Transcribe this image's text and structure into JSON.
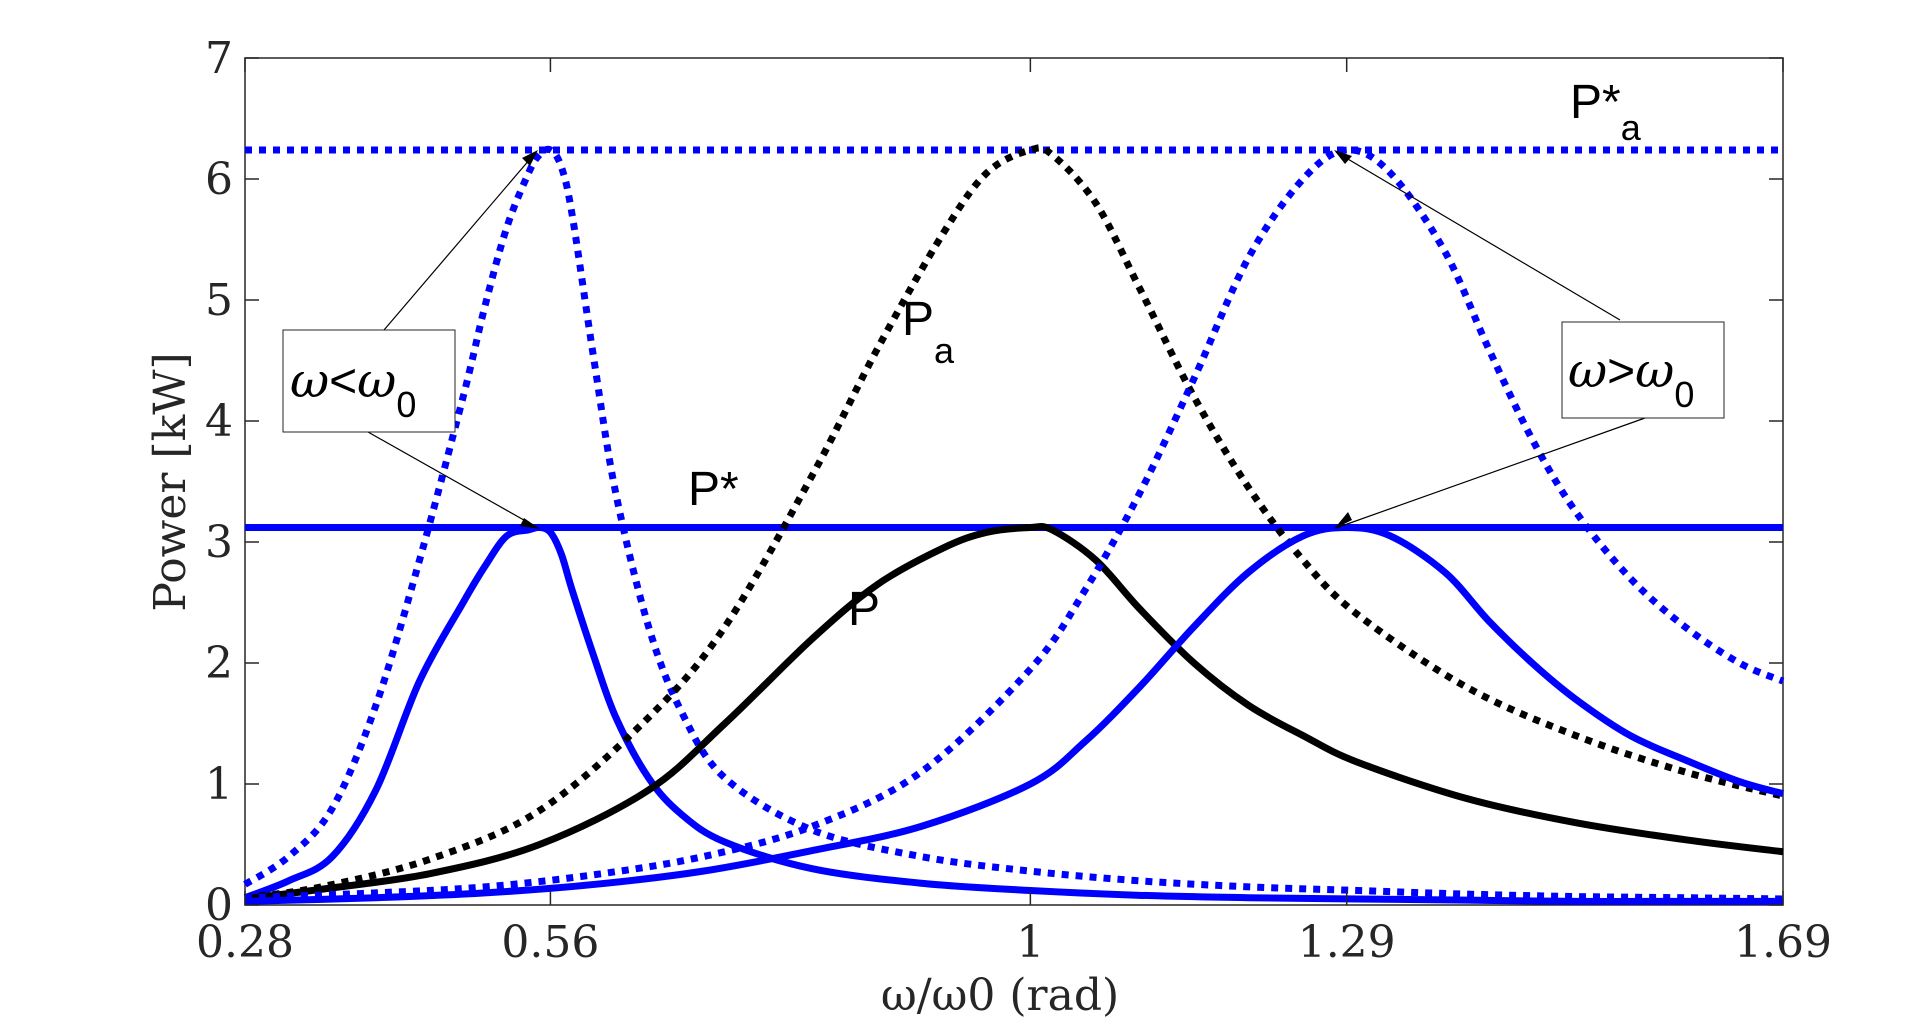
{
  "chart_data": {
    "type": "line",
    "xlabel": "ω/ω0 (rad)",
    "ylabel": "Power [kW]",
    "xlim": [
      0.28,
      1.69
    ],
    "ylim": [
      0,
      7
    ],
    "xticks": [
      0.28,
      0.56,
      1,
      1.29,
      1.69
    ],
    "xtick_labels": [
      "0.28",
      "0.56",
      "1",
      "1.29",
      "1.69"
    ],
    "yticks": [
      0,
      1,
      2,
      3,
      4,
      5,
      6,
      7
    ],
    "ytick_labels": [
      "0",
      "1",
      "2",
      "3",
      "4",
      "5",
      "6",
      "7"
    ],
    "grid": false,
    "colors": {
      "blue": "#0000ff",
      "black": "#000000",
      "axis": "#262626"
    },
    "series": [
      {
        "id": "p-star-a",
        "color": "#0000ff",
        "style": "dotted",
        "x": [
          0.28,
          1.69
        ],
        "y": [
          6.24,
          6.24
        ]
      },
      {
        "id": "p-star",
        "color": "#0000ff",
        "style": "solid",
        "x": [
          0.28,
          1.69
        ],
        "y": [
          3.12,
          3.12
        ]
      },
      {
        "id": "pa-low",
        "color": "#0000ff",
        "style": "dotted",
        "x": [
          0.28,
          0.32,
          0.36,
          0.4,
          0.44,
          0.48,
          0.5,
          0.52,
          0.54,
          0.55,
          0.56,
          0.57,
          0.58,
          0.6,
          0.62,
          0.65,
          0.68,
          0.72,
          0.8,
          0.9,
          1.0,
          1.1,
          1.2,
          1.3,
          1.4,
          1.5,
          1.6,
          1.69
        ],
        "y": [
          0.17,
          0.4,
          0.8,
          1.65,
          2.85,
          4.2,
          4.95,
          5.6,
          6.05,
          6.2,
          6.24,
          6.1,
          5.7,
          4.5,
          3.4,
          2.3,
          1.6,
          1.05,
          0.62,
          0.4,
          0.28,
          0.2,
          0.15,
          0.12,
          0.09,
          0.07,
          0.06,
          0.05
        ]
      },
      {
        "id": "p-low",
        "color": "#0000ff",
        "style": "solid",
        "x": [
          0.28,
          0.32,
          0.36,
          0.4,
          0.44,
          0.48,
          0.5,
          0.52,
          0.54,
          0.55,
          0.56,
          0.57,
          0.58,
          0.6,
          0.62,
          0.65,
          0.68,
          0.72,
          0.8,
          0.9,
          1.0,
          1.1,
          1.2,
          1.3,
          1.4,
          1.5,
          1.6,
          1.69
        ],
        "y": [
          0.06,
          0.2,
          0.4,
          0.95,
          1.85,
          2.5,
          2.8,
          3.05,
          3.1,
          3.12,
          3.08,
          2.9,
          2.6,
          2.05,
          1.55,
          1.05,
          0.75,
          0.52,
          0.3,
          0.18,
          0.12,
          0.08,
          0.06,
          0.05,
          0.04,
          0.03,
          0.03,
          0.03
        ]
      },
      {
        "id": "pa-mid",
        "color": "#000000",
        "style": "dotted",
        "x": [
          0.28,
          0.35,
          0.45,
          0.55,
          0.65,
          0.72,
          0.8,
          0.86,
          0.92,
          0.96,
          1.0,
          1.02,
          1.06,
          1.1,
          1.15,
          1.2,
          1.25,
          1.3,
          1.4,
          1.5,
          1.6,
          1.69
        ],
        "y": [
          0.06,
          0.15,
          0.38,
          0.78,
          1.55,
          2.3,
          3.55,
          4.6,
          5.55,
          6.05,
          6.24,
          6.2,
          5.8,
          5.1,
          4.2,
          3.45,
          2.85,
          2.4,
          1.8,
          1.4,
          1.1,
          0.9
        ]
      },
      {
        "id": "p-mid",
        "color": "#000000",
        "style": "solid",
        "x": [
          0.28,
          0.35,
          0.45,
          0.55,
          0.65,
          0.72,
          0.8,
          0.86,
          0.92,
          0.96,
          1.0,
          1.02,
          1.06,
          1.1,
          1.15,
          1.2,
          1.25,
          1.3,
          1.4,
          1.5,
          1.6,
          1.69
        ],
        "y": [
          0.05,
          0.13,
          0.26,
          0.5,
          0.95,
          1.5,
          2.2,
          2.65,
          2.95,
          3.08,
          3.12,
          3.1,
          2.85,
          2.45,
          2.0,
          1.65,
          1.4,
          1.18,
          0.88,
          0.68,
          0.54,
          0.44
        ]
      },
      {
        "id": "pa-high",
        "color": "#0000ff",
        "style": "dotted",
        "x": [
          0.28,
          0.4,
          0.5,
          0.6,
          0.7,
          0.8,
          0.9,
          1.0,
          1.05,
          1.1,
          1.15,
          1.2,
          1.25,
          1.29,
          1.33,
          1.38,
          1.42,
          1.46,
          1.5,
          1.55,
          1.6,
          1.65,
          1.69
        ],
        "y": [
          0.06,
          0.1,
          0.15,
          0.25,
          0.4,
          0.65,
          1.1,
          1.95,
          2.6,
          3.4,
          4.35,
          5.35,
          6.0,
          6.24,
          6.05,
          5.4,
          4.6,
          3.85,
          3.25,
          2.7,
          2.3,
          2.0,
          1.85
        ]
      },
      {
        "id": "p-high",
        "color": "#0000ff",
        "style": "solid",
        "x": [
          0.28,
          0.4,
          0.5,
          0.6,
          0.7,
          0.8,
          0.9,
          1.0,
          1.05,
          1.1,
          1.15,
          1.2,
          1.25,
          1.29,
          1.33,
          1.38,
          1.42,
          1.46,
          1.5,
          1.55,
          1.6,
          1.65,
          1.69
        ],
        "y": [
          0.03,
          0.06,
          0.1,
          0.17,
          0.28,
          0.45,
          0.65,
          1.0,
          1.35,
          1.8,
          2.3,
          2.75,
          3.05,
          3.12,
          3.05,
          2.75,
          2.35,
          2.0,
          1.7,
          1.4,
          1.2,
          1.02,
          0.92
        ]
      }
    ],
    "annotations": {
      "p_star_a": {
        "main": "P*",
        "sub": "a"
      },
      "p_star": {
        "main": "P*"
      },
      "p_a": {
        "main": "P",
        "sub": "a"
      },
      "p": {
        "main": "P"
      },
      "box_low": {
        "omega": "ω",
        "rel": "<",
        "omega0": "ω",
        "sub": "0"
      },
      "box_high": {
        "omega": "ω",
        "rel": ">",
        "omega0": "ω",
        "sub": "0"
      }
    }
  }
}
